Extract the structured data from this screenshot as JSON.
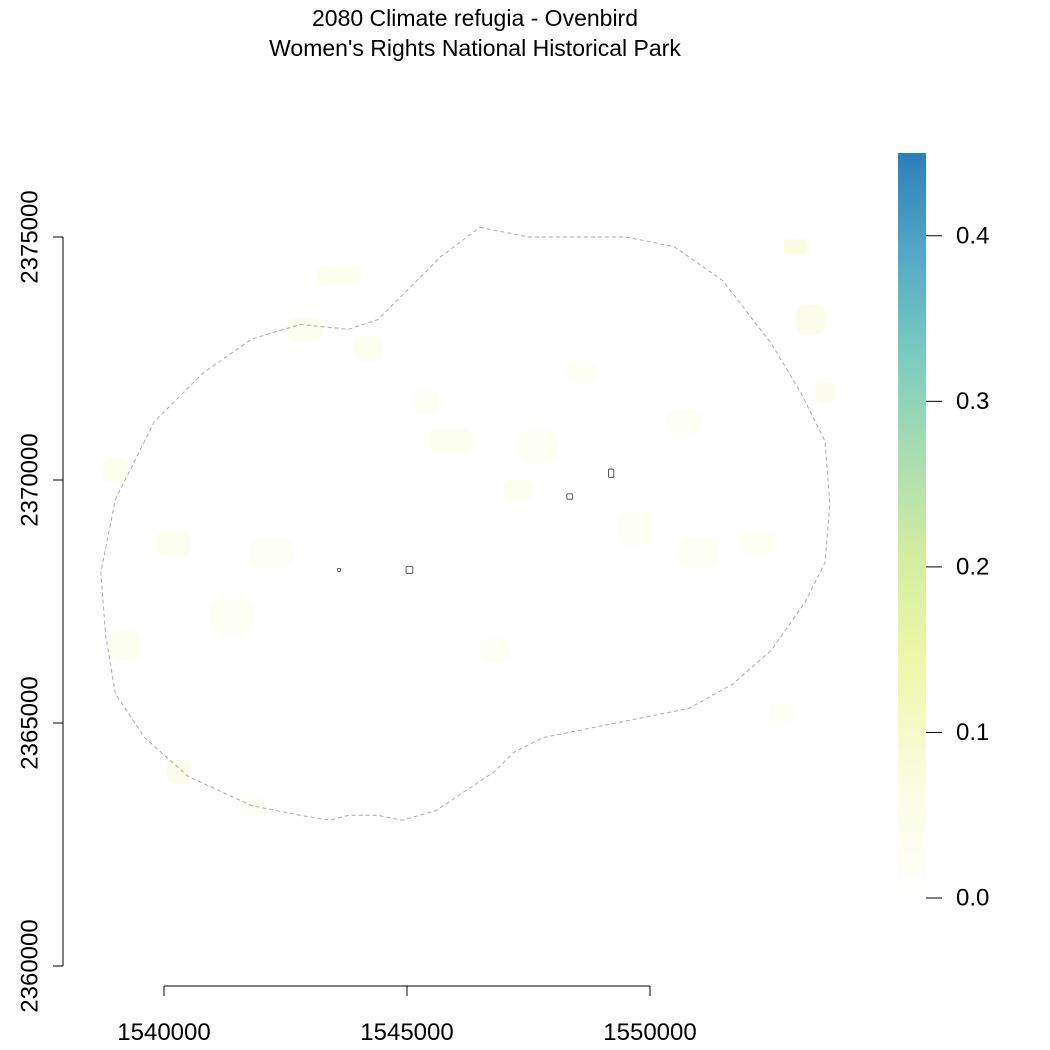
{
  "title": "2080 Climate refugia - Ovenbird",
  "subtitle": "Women's Rights National Historical Park",
  "colors": {
    "legend_gradient": [
      "#ffffff",
      "#fafce0",
      "#eef8aa",
      "#d3eda0",
      "#9fd9b6",
      "#78c8c0",
      "#5aaec6",
      "#2f82bb"
    ],
    "refugia_patch": "#f5f9d6",
    "boundary_buffer": "#aaaaaa",
    "park_unit": "#333333"
  },
  "chart_data": {
    "type": "heatmap",
    "title": "2080 Climate refugia - Ovenbird",
    "subtitle": "Women's Rights National Historical Park",
    "xlabel": "",
    "ylabel": "",
    "x_ticks": [
      1540000,
      1545000,
      1550000
    ],
    "y_ticks": [
      2360000,
      2365000,
      2370000,
      2375000
    ],
    "x_tick_labels": [
      "1540000",
      "1545000",
      "1550000"
    ],
    "y_tick_labels": [
      "2360000",
      "2365000",
      "2370000",
      "2375000"
    ],
    "xlim": [
      1538200,
      1554200
    ],
    "ylim": [
      2360000,
      2376800
    ],
    "legend": {
      "min": 0.0,
      "max": 0.45,
      "ticks": [
        0.0,
        0.1,
        0.2,
        0.3,
        0.4
      ],
      "tick_labels": [
        "0.0",
        "0.1",
        "0.2",
        "0.3",
        "0.4"
      ],
      "placement": "right"
    },
    "buffer_boundary": [
      [
        1546500,
        2375200
      ],
      [
        1547500,
        2375000
      ],
      [
        1549500,
        2375000
      ],
      [
        1550500,
        2374800
      ],
      [
        1551500,
        2374100
      ],
      [
        1552500,
        2372800
      ],
      [
        1553100,
        2371800
      ],
      [
        1553600,
        2370800
      ],
      [
        1553700,
        2369500
      ],
      [
        1553600,
        2368300
      ],
      [
        1553200,
        2367500
      ],
      [
        1552500,
        2366500
      ],
      [
        1551700,
        2365800
      ],
      [
        1550800,
        2365300
      ],
      [
        1549800,
        2365100
      ],
      [
        1548800,
        2364900
      ],
      [
        1547800,
        2364700
      ],
      [
        1547200,
        2364400
      ],
      [
        1546800,
        2364000
      ],
      [
        1546200,
        2363600
      ],
      [
        1545600,
        2363200
      ],
      [
        1544900,
        2363000
      ],
      [
        1544400,
        2363100
      ],
      [
        1543800,
        2363100
      ],
      [
        1543400,
        2363000
      ],
      [
        1542800,
        2363100
      ],
      [
        1541800,
        2363300
      ],
      [
        1540500,
        2363900
      ],
      [
        1539600,
        2364700
      ],
      [
        1539000,
        2365600
      ],
      [
        1538800,
        2366800
      ],
      [
        1538700,
        2368100
      ],
      [
        1539000,
        2369600
      ],
      [
        1539800,
        2371200
      ],
      [
        1540800,
        2372200
      ],
      [
        1541800,
        2372900
      ],
      [
        1542800,
        2373200
      ],
      [
        1543800,
        2373100
      ],
      [
        1544400,
        2373300
      ],
      [
        1545000,
        2373900
      ],
      [
        1545700,
        2374600
      ],
      [
        1546500,
        2375200
      ]
    ],
    "park_units": [
      {
        "center": [
          1543600,
          2368150
        ],
        "size": [
          60,
          50
        ]
      },
      {
        "center": [
          1545050,
          2368150
        ],
        "size": [
          140,
          140
        ]
      },
      {
        "center": [
          1548350,
          2369660
        ],
        "size": [
          120,
          110
        ]
      },
      {
        "center": [
          1549200,
          2370140
        ],
        "size": [
          110,
          170
        ]
      }
    ],
    "refugia_patches": [
      {
        "center": [
          1540300,
          2364000
        ],
        "size": [
          500,
          500
        ],
        "value": 0.05
      },
      {
        "center": [
          1539200,
          2366600
        ],
        "size": [
          600,
          600
        ],
        "value": 0.04
      },
      {
        "center": [
          1540200,
          2368700
        ],
        "size": [
          700,
          500
        ],
        "value": 0.04
      },
      {
        "center": [
          1541400,
          2367200
        ],
        "size": [
          900,
          700
        ],
        "value": 0.03
      },
      {
        "center": [
          1542200,
          2368500
        ],
        "size": [
          900,
          600
        ],
        "value": 0.03
      },
      {
        "center": [
          1542900,
          2373100
        ],
        "size": [
          700,
          500
        ],
        "value": 0.04
      },
      {
        "center": [
          1543600,
          2374200
        ],
        "size": [
          900,
          400
        ],
        "value": 0.04
      },
      {
        "center": [
          1544200,
          2372700
        ],
        "size": [
          600,
          500
        ],
        "value": 0.04
      },
      {
        "center": [
          1545400,
          2371600
        ],
        "size": [
          500,
          500
        ],
        "value": 0.03
      },
      {
        "center": [
          1545900,
          2370800
        ],
        "size": [
          900,
          500
        ],
        "value": 0.04
      },
      {
        "center": [
          1547300,
          2369800
        ],
        "size": [
          600,
          400
        ],
        "value": 0.04
      },
      {
        "center": [
          1547700,
          2370700
        ],
        "size": [
          800,
          700
        ],
        "value": 0.03
      },
      {
        "center": [
          1549700,
          2369000
        ],
        "size": [
          700,
          700
        ],
        "value": 0.03
      },
      {
        "center": [
          1551000,
          2368500
        ],
        "size": [
          800,
          600
        ],
        "value": 0.03
      },
      {
        "center": [
          1552200,
          2368700
        ],
        "size": [
          700,
          500
        ],
        "value": 0.03
      },
      {
        "center": [
          1553300,
          2373300
        ],
        "size": [
          600,
          600
        ],
        "value": 0.06
      },
      {
        "center": [
          1553000,
          2374800
        ],
        "size": [
          500,
          300
        ],
        "value": 0.07
      },
      {
        "center": [
          1553600,
          2371800
        ],
        "size": [
          400,
          400
        ],
        "value": 0.05
      },
      {
        "center": [
          1546800,
          2366500
        ],
        "size": [
          600,
          500
        ],
        "value": 0.03
      },
      {
        "center": [
          1552700,
          2365200
        ],
        "size": [
          500,
          400
        ],
        "value": 0.03
      },
      {
        "center": [
          1539000,
          2370200
        ],
        "size": [
          500,
          500
        ],
        "value": 0.04
      },
      {
        "center": [
          1541800,
          2363300
        ],
        "size": [
          500,
          400
        ],
        "value": 0.03
      },
      {
        "center": [
          1548600,
          2372200
        ],
        "size": [
          600,
          400
        ],
        "value": 0.03
      },
      {
        "center": [
          1550700,
          2371200
        ],
        "size": [
          700,
          500
        ],
        "value": 0.03
      }
    ]
  }
}
